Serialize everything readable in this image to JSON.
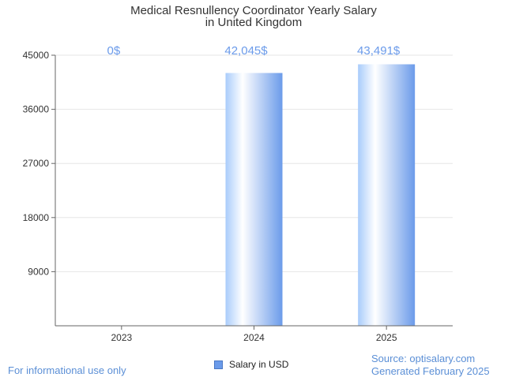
{
  "chart_data": {
    "type": "bar",
    "title": "Medical Resnullency Coordinator Yearly Salary",
    "subtitle": "in United Kingdom",
    "categories": [
      "2023",
      "2024",
      "2025"
    ],
    "values": [
      0,
      42045,
      43491
    ],
    "data_labels": [
      "0$",
      "42,045$",
      "43,491$"
    ],
    "ylim": [
      0,
      45000
    ],
    "yticks": [
      9000,
      18000,
      27000,
      36000,
      45000
    ],
    "xlabel": "",
    "ylabel": "",
    "grid": true,
    "legend": {
      "label": "Salary in USD",
      "placement": "bottom-center"
    },
    "colors": {
      "bar_light": "#dbeafe",
      "bar_dark": "#6b9bea",
      "label": "#6b9bea"
    }
  },
  "footer": {
    "disclaimer": "For informational use only",
    "source": "Source: optisalary.com",
    "generated": "Generated February 2025"
  }
}
